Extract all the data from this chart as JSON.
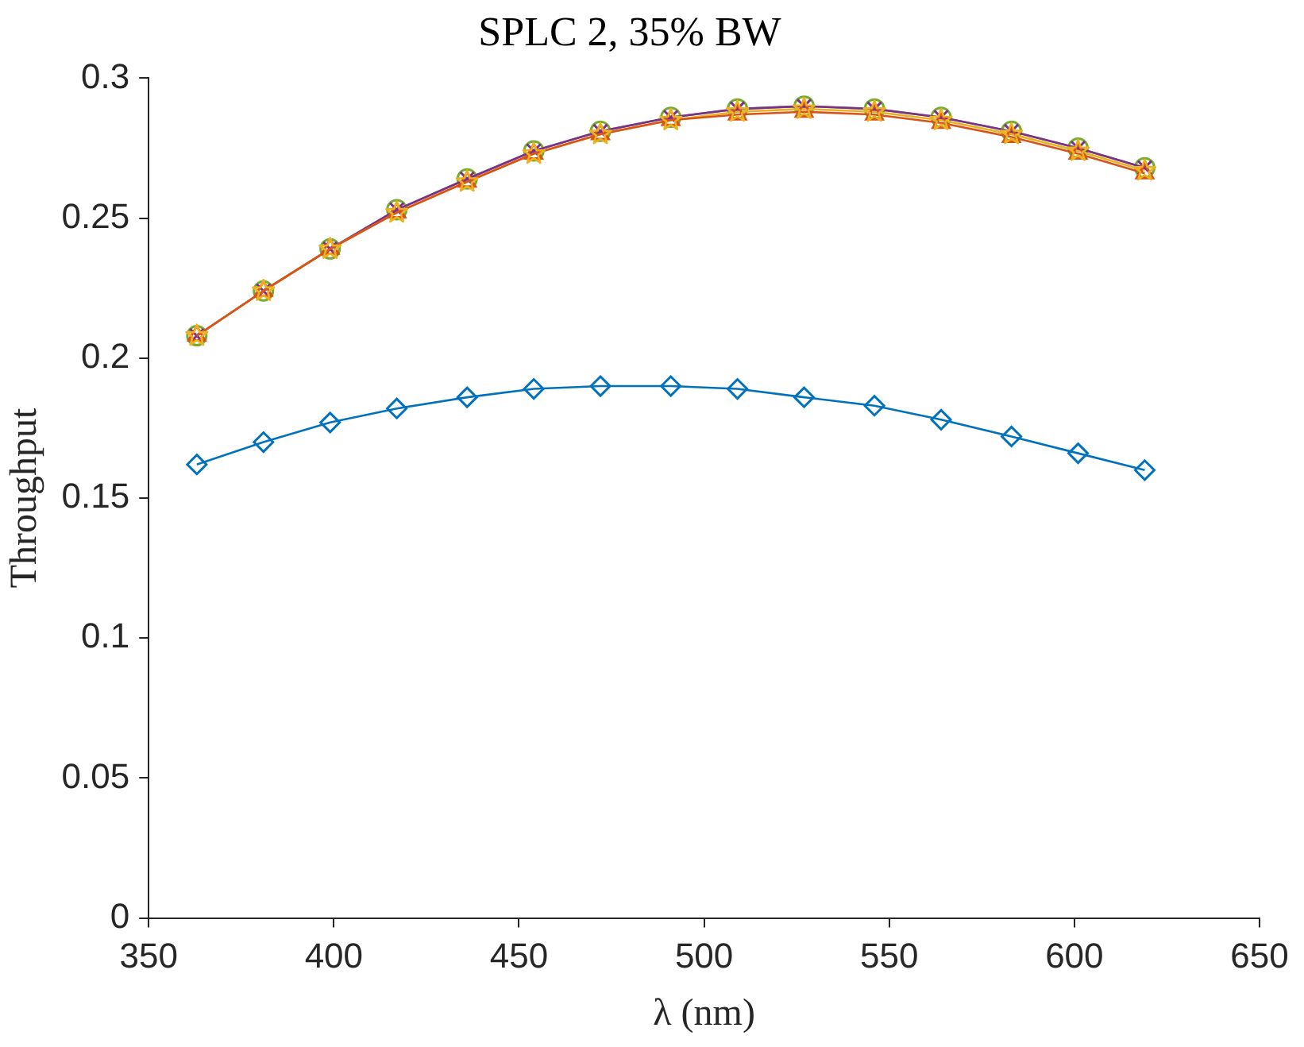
{
  "chart_data": {
    "type": "line",
    "title": "SPLC 2, 35% BW",
    "xlabel": "λ (nm)",
    "ylabel": "Throughput",
    "xlim": [
      350,
      650
    ],
    "xticks": [
      350,
      400,
      450,
      500,
      550,
      600,
      650
    ],
    "ylim": [
      0,
      0.3
    ],
    "yticks": [
      0,
      0.05,
      0.1,
      0.15,
      0.2,
      0.25,
      0.3
    ],
    "grid": false,
    "legend": false,
    "x": [
      363,
      381,
      399,
      417,
      436,
      454,
      472,
      491,
      509,
      527,
      546,
      564,
      583,
      601,
      619
    ],
    "series": [
      {
        "color": "#0072bd",
        "marker": "diamond",
        "values": [
          0.162,
          0.17,
          0.177,
          0.182,
          0.186,
          0.189,
          0.19,
          0.19,
          0.189,
          0.186,
          0.183,
          0.178,
          0.172,
          0.166,
          0.16
        ]
      },
      {
        "color": "#d95319",
        "marker": "triangle",
        "values": [
          0.208,
          0.224,
          0.239,
          0.252,
          0.263,
          0.273,
          0.28,
          0.285,
          0.287,
          0.288,
          0.287,
          0.284,
          0.279,
          0.273,
          0.266
        ]
      },
      {
        "color": "#edb120",
        "marker": "star",
        "values": [
          0.208,
          0.224,
          0.239,
          0.252,
          0.263,
          0.273,
          0.28,
          0.285,
          0.288,
          0.289,
          0.288,
          0.285,
          0.28,
          0.274,
          0.267
        ]
      },
      {
        "color": "#7e2f8e",
        "marker": "cross",
        "values": [
          0.208,
          0.224,
          0.239,
          0.253,
          0.264,
          0.274,
          0.281,
          0.286,
          0.289,
          0.29,
          0.289,
          0.286,
          0.281,
          0.275,
          0.268
        ]
      },
      {
        "color": "#77ac30",
        "marker": "circle",
        "values": [
          0.208,
          0.224,
          0.239,
          0.253,
          0.264,
          0.274,
          0.281,
          0.286,
          0.289,
          0.29,
          0.289,
          0.286,
          0.281,
          0.275,
          0.268
        ]
      }
    ]
  }
}
